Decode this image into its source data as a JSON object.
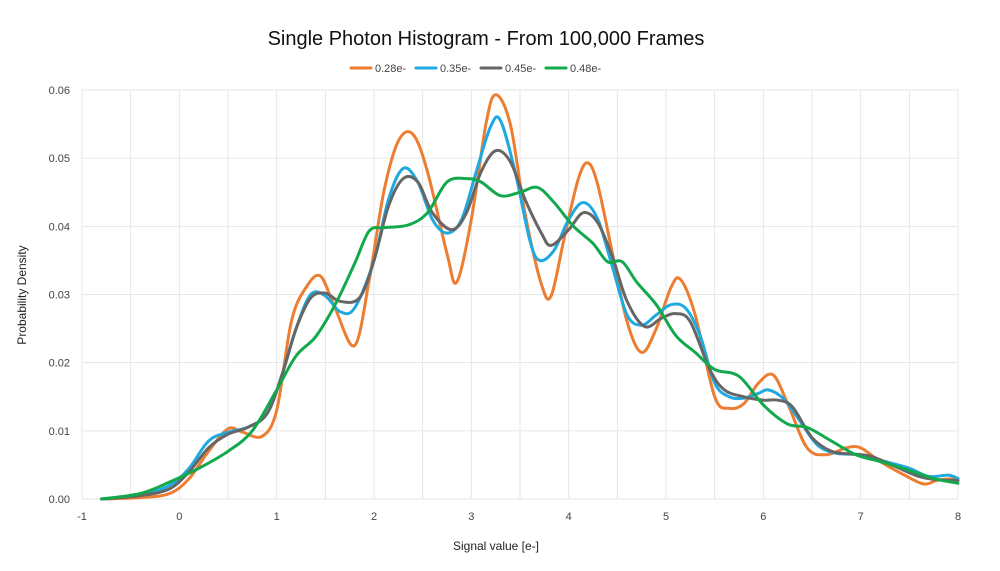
{
  "chart_data": {
    "type": "line",
    "title": "Single Photon Histogram - From 100,000 Frames",
    "xlabel": "Signal value [e-]",
    "ylabel": "Probability Density",
    "xlim": [
      -1,
      8
    ],
    "ylim": [
      0,
      0.06
    ],
    "xticks": [
      "-1",
      "0",
      "1",
      "2",
      "3",
      "4",
      "5",
      "6",
      "7",
      "8"
    ],
    "yticks": [
      "0.00",
      "0.01",
      "0.02",
      "0.03",
      "0.04",
      "0.05",
      "0.06"
    ],
    "grid": true,
    "legend_position": "top-center",
    "series": [
      {
        "name": "0.28e-",
        "color": "#ED7D31",
        "points": [
          [
            -0.8,
            0
          ],
          [
            -0.4,
            0.0002
          ],
          [
            -0.1,
            0.0008
          ],
          [
            0.1,
            0.003
          ],
          [
            0.3,
            0.007
          ],
          [
            0.5,
            0.0103
          ],
          [
            0.65,
            0.0098
          ],
          [
            0.85,
            0.0092
          ],
          [
            1.0,
            0.013
          ],
          [
            1.15,
            0.026
          ],
          [
            1.3,
            0.031
          ],
          [
            1.45,
            0.0327
          ],
          [
            1.6,
            0.028
          ],
          [
            1.8,
            0.0225
          ],
          [
            1.95,
            0.032
          ],
          [
            2.1,
            0.045
          ],
          [
            2.25,
            0.0525
          ],
          [
            2.4,
            0.0535
          ],
          [
            2.55,
            0.048
          ],
          [
            2.75,
            0.036
          ],
          [
            2.85,
            0.0318
          ],
          [
            3.0,
            0.041
          ],
          [
            3.15,
            0.055
          ],
          [
            3.25,
            0.0593
          ],
          [
            3.4,
            0.055
          ],
          [
            3.55,
            0.042
          ],
          [
            3.72,
            0.0315
          ],
          [
            3.82,
            0.0298
          ],
          [
            3.95,
            0.038
          ],
          [
            4.1,
            0.047
          ],
          [
            4.2,
            0.0493
          ],
          [
            4.3,
            0.046
          ],
          [
            4.45,
            0.036
          ],
          [
            4.6,
            0.026
          ],
          [
            4.75,
            0.0215
          ],
          [
            4.9,
            0.025
          ],
          [
            5.05,
            0.031
          ],
          [
            5.15,
            0.0322
          ],
          [
            5.3,
            0.027
          ],
          [
            5.5,
            0.015
          ],
          [
            5.65,
            0.0133
          ],
          [
            5.8,
            0.014
          ],
          [
            5.95,
            0.017
          ],
          [
            6.1,
            0.0182
          ],
          [
            6.25,
            0.014
          ],
          [
            6.45,
            0.0075
          ],
          [
            6.65,
            0.0065
          ],
          [
            6.85,
            0.0075
          ],
          [
            7.0,
            0.0075
          ],
          [
            7.2,
            0.0055
          ],
          [
            7.45,
            0.0035
          ],
          [
            7.65,
            0.0022
          ],
          [
            7.8,
            0.0028
          ],
          [
            8.0,
            0.003
          ]
        ]
      },
      {
        "name": "0.35e-",
        "color": "#1FA9E1",
        "points": [
          [
            -0.8,
            0
          ],
          [
            -0.4,
            0.0006
          ],
          [
            -0.1,
            0.002
          ],
          [
            0.1,
            0.0045
          ],
          [
            0.3,
            0.0085
          ],
          [
            0.5,
            0.0098
          ],
          [
            0.7,
            0.0105
          ],
          [
            0.9,
            0.0125
          ],
          [
            1.05,
            0.018
          ],
          [
            1.2,
            0.025
          ],
          [
            1.35,
            0.03
          ],
          [
            1.5,
            0.0298
          ],
          [
            1.65,
            0.0275
          ],
          [
            1.8,
            0.028
          ],
          [
            2.0,
            0.035
          ],
          [
            2.15,
            0.044
          ],
          [
            2.3,
            0.0485
          ],
          [
            2.45,
            0.0465
          ],
          [
            2.6,
            0.041
          ],
          [
            2.75,
            0.039
          ],
          [
            2.9,
            0.041
          ],
          [
            3.05,
            0.048
          ],
          [
            3.2,
            0.0547
          ],
          [
            3.3,
            0.0555
          ],
          [
            3.45,
            0.048
          ],
          [
            3.6,
            0.038
          ],
          [
            3.7,
            0.035
          ],
          [
            3.85,
            0.0365
          ],
          [
            4.0,
            0.041
          ],
          [
            4.15,
            0.0435
          ],
          [
            4.3,
            0.041
          ],
          [
            4.45,
            0.034
          ],
          [
            4.6,
            0.027
          ],
          [
            4.75,
            0.0255
          ],
          [
            4.9,
            0.027
          ],
          [
            5.05,
            0.0285
          ],
          [
            5.2,
            0.028
          ],
          [
            5.35,
            0.024
          ],
          [
            5.5,
            0.017
          ],
          [
            5.65,
            0.015
          ],
          [
            5.8,
            0.0148
          ],
          [
            5.95,
            0.0155
          ],
          [
            6.05,
            0.016
          ],
          [
            6.2,
            0.0148
          ],
          [
            6.35,
            0.012
          ],
          [
            6.55,
            0.008
          ],
          [
            6.75,
            0.0067
          ],
          [
            7.0,
            0.0065
          ],
          [
            7.25,
            0.0055
          ],
          [
            7.5,
            0.0045
          ],
          [
            7.7,
            0.0033
          ],
          [
            7.9,
            0.0035
          ],
          [
            8.0,
            0.003
          ]
        ]
      },
      {
        "name": "0.45e-",
        "color": "#666666",
        "points": [
          [
            -0.8,
            0
          ],
          [
            -0.4,
            0.0005
          ],
          [
            -0.1,
            0.0015
          ],
          [
            0.1,
            0.004
          ],
          [
            0.3,
            0.0075
          ],
          [
            0.5,
            0.0095
          ],
          [
            0.7,
            0.0105
          ],
          [
            0.9,
            0.0125
          ],
          [
            1.05,
            0.018
          ],
          [
            1.2,
            0.025
          ],
          [
            1.35,
            0.0295
          ],
          [
            1.5,
            0.0302
          ],
          [
            1.65,
            0.029
          ],
          [
            1.85,
            0.0295
          ],
          [
            2.0,
            0.035
          ],
          [
            2.15,
            0.043
          ],
          [
            2.3,
            0.047
          ],
          [
            2.45,
            0.0465
          ],
          [
            2.6,
            0.042
          ],
          [
            2.8,
            0.0395
          ],
          [
            2.95,
            0.042
          ],
          [
            3.1,
            0.048
          ],
          [
            3.25,
            0.0511
          ],
          [
            3.4,
            0.0495
          ],
          [
            3.55,
            0.044
          ],
          [
            3.72,
            0.039
          ],
          [
            3.82,
            0.0372
          ],
          [
            4.0,
            0.0395
          ],
          [
            4.15,
            0.042
          ],
          [
            4.3,
            0.0405
          ],
          [
            4.45,
            0.0355
          ],
          [
            4.6,
            0.029
          ],
          [
            4.78,
            0.0253
          ],
          [
            4.95,
            0.0265
          ],
          [
            5.1,
            0.0272
          ],
          [
            5.25,
            0.026
          ],
          [
            5.45,
            0.019
          ],
          [
            5.6,
            0.016
          ],
          [
            5.8,
            0.015
          ],
          [
            6.0,
            0.0145
          ],
          [
            6.15,
            0.0145
          ],
          [
            6.3,
            0.0135
          ],
          [
            6.5,
            0.009
          ],
          [
            6.7,
            0.007
          ],
          [
            6.9,
            0.0066
          ],
          [
            7.1,
            0.0063
          ],
          [
            7.35,
            0.0048
          ],
          [
            7.6,
            0.0033
          ],
          [
            7.8,
            0.0028
          ],
          [
            8.0,
            0.0027
          ]
        ]
      },
      {
        "name": "0.48e-",
        "color": "#12A94D",
        "points": [
          [
            -0.8,
            0
          ],
          [
            -0.4,
            0.0008
          ],
          [
            -0.1,
            0.0025
          ],
          [
            0.2,
            0.0045
          ],
          [
            0.5,
            0.007
          ],
          [
            0.75,
            0.01
          ],
          [
            1.0,
            0.016
          ],
          [
            1.2,
            0.021
          ],
          [
            1.4,
            0.0238
          ],
          [
            1.6,
            0.0285
          ],
          [
            1.8,
            0.0345
          ],
          [
            1.95,
            0.0393
          ],
          [
            2.1,
            0.0398
          ],
          [
            2.35,
            0.0402
          ],
          [
            2.55,
            0.042
          ],
          [
            2.75,
            0.0465
          ],
          [
            2.95,
            0.047
          ],
          [
            3.1,
            0.0465
          ],
          [
            3.3,
            0.0445
          ],
          [
            3.5,
            0.045
          ],
          [
            3.68,
            0.0457
          ],
          [
            3.85,
            0.0435
          ],
          [
            4.05,
            0.04
          ],
          [
            4.25,
            0.0375
          ],
          [
            4.4,
            0.0348
          ],
          [
            4.55,
            0.0348
          ],
          [
            4.7,
            0.0318
          ],
          [
            4.9,
            0.0285
          ],
          [
            5.1,
            0.024
          ],
          [
            5.3,
            0.0215
          ],
          [
            5.5,
            0.019
          ],
          [
            5.75,
            0.018
          ],
          [
            6.0,
            0.0138
          ],
          [
            6.25,
            0.011
          ],
          [
            6.45,
            0.0105
          ],
          [
            6.7,
            0.0085
          ],
          [
            6.95,
            0.0065
          ],
          [
            7.2,
            0.0055
          ],
          [
            7.5,
            0.0042
          ],
          [
            7.75,
            0.003
          ],
          [
            8.0,
            0.0023
          ]
        ]
      }
    ]
  }
}
